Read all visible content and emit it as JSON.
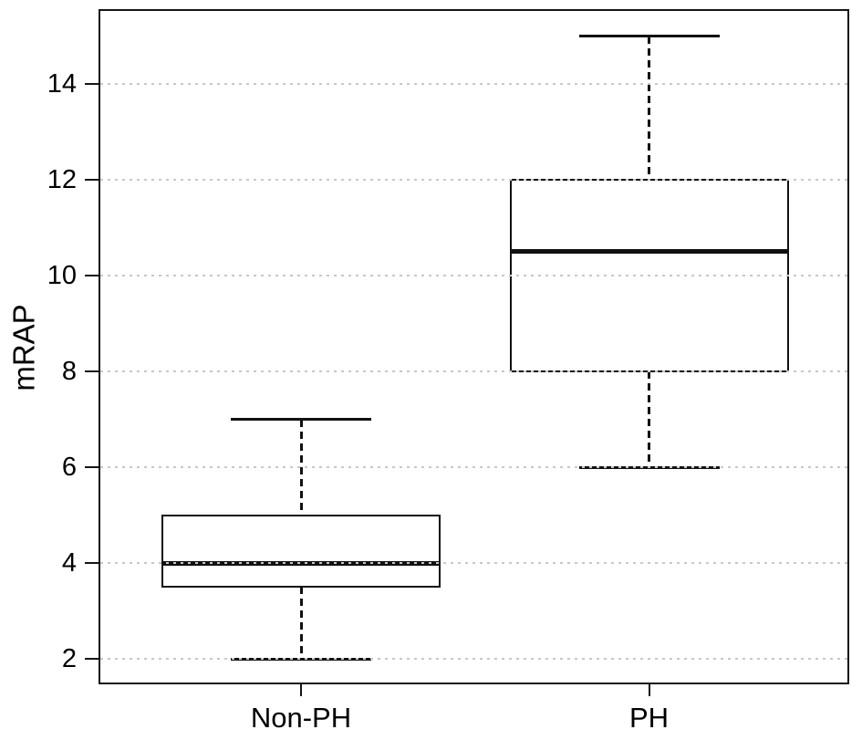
{
  "chart_data": {
    "type": "boxplot",
    "title": "",
    "xlabel": "",
    "ylabel": "mRAP",
    "categories": [
      "Non-PH",
      "PH"
    ],
    "series": [
      {
        "name": "Non-PH",
        "whisker_low": 2,
        "q1": 3.5,
        "median": 4,
        "q3": 5,
        "whisker_high": 7,
        "outliers": []
      },
      {
        "name": "PH",
        "whisker_low": 6,
        "q1": 8,
        "median": 10.5,
        "q3": 12,
        "whisker_high": 15,
        "outliers": []
      }
    ],
    "y_ticks": [
      2,
      4,
      6,
      8,
      10,
      12,
      14
    ],
    "ylim": [
      1.5,
      15.6
    ],
    "grid": {
      "horizontal_at_y_ticks": true,
      "style": "dotted",
      "drawn_above_boxes": true
    },
    "legend": "none",
    "colors": {
      "line": "#111111",
      "grid": "#c8c8c8",
      "background": "#ffffff"
    }
  }
}
